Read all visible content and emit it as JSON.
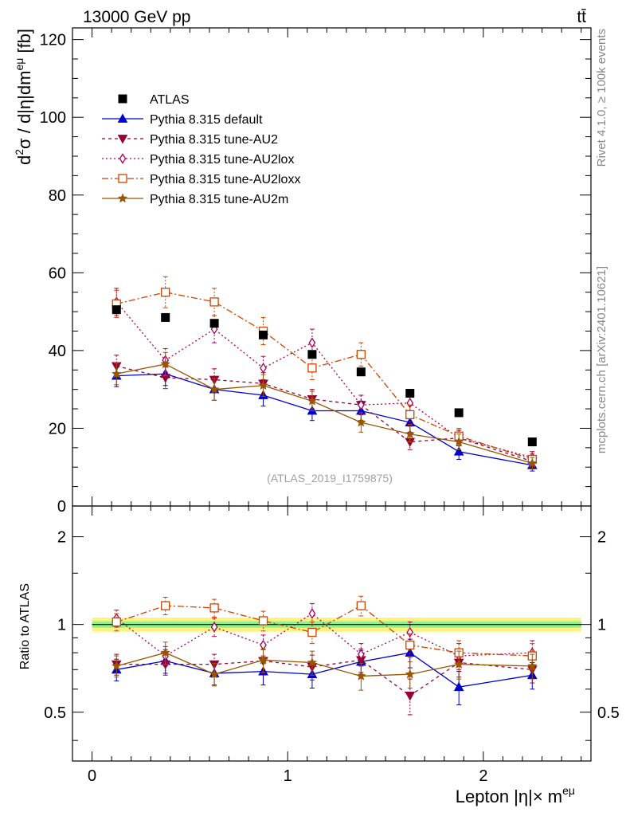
{
  "header": {
    "process": "13000 GeV pp",
    "channel": "tt̄"
  },
  "side_labels": {
    "rivet": "Rivet 4.1.0, ≥ 100k events",
    "mcplots": "mcplots.cern.ch [arXiv:2401.10621]"
  },
  "watermark": "(ATLAS_2019_I1759875)",
  "chart_data": [
    {
      "panel": "main",
      "type": "scatter",
      "ylabel": "d²σ / d|η|dm^eμ [fb]",
      "ylabel_main": "d",
      "ylabel_sup1": "2",
      "ylabel_mid": "σ / d|η|dm",
      "ylabel_sup2": "eμ",
      "ylabel_end": " [fb]",
      "xlim": [
        -0.1,
        2.55
      ],
      "ylim": [
        0,
        123
      ],
      "yticks": [
        0,
        20,
        40,
        60,
        80,
        100,
        120
      ],
      "ytick_labels": [
        "0",
        "20",
        "40",
        "60",
        "80",
        "100",
        "120"
      ],
      "x": [
        0.125,
        0.375,
        0.625,
        0.875,
        1.125,
        1.375,
        1.625,
        1.875,
        2.25
      ],
      "data": {
        "name": "ATLAS",
        "values": [
          50.5,
          48.5,
          47.0,
          44.0,
          39.0,
          34.5,
          29.0,
          24.0,
          16.5
        ],
        "xerr": [
          0.125,
          0.125,
          0.125,
          0.125,
          0.125,
          0.125,
          0.125,
          0.125,
          0.25
        ]
      },
      "series": [
        {
          "name": "Pythia 8.315 default",
          "color": "#0000cc",
          "dash": "",
          "marker": "triangle-up",
          "values": [
            33.5,
            34.0,
            30.0,
            28.5,
            24.5,
            24.5,
            21.5,
            14.0,
            10.5
          ],
          "errors": [
            2.8,
            3.0,
            2.8,
            2.8,
            2.5,
            2.5,
            2.5,
            2.0,
            1.5
          ]
        },
        {
          "name": "Pythia 8.315 tune-AU2",
          "color": "#990033",
          "dash": "4,4",
          "marker": "triangle-down",
          "values": [
            36.0,
            33.0,
            32.5,
            31.5,
            27.5,
            26.0,
            16.5,
            17.5,
            11.5
          ],
          "errors": [
            2.8,
            2.8,
            2.8,
            2.8,
            2.5,
            2.5,
            2.0,
            2.0,
            1.5
          ]
        },
        {
          "name": "Pythia 8.315 tune-AU2lox",
          "color": "#aa0055",
          "dash": "2,3",
          "marker": "diamond-open",
          "values": [
            52.5,
            37.5,
            45.5,
            35.5,
            42.0,
            26.0,
            26.5,
            17.5,
            12.5
          ],
          "errors": [
            3.5,
            3.0,
            3.5,
            3.0,
            3.5,
            2.5,
            2.5,
            2.0,
            1.5
          ]
        },
        {
          "name": "Pythia 8.315 tune-AU2loxx",
          "color": "#cc4400",
          "dash": "8,3,2,3",
          "marker": "square-open",
          "values": [
            52.0,
            55.0,
            52.5,
            45.0,
            35.5,
            39.0,
            23.5,
            18.0,
            12.0
          ],
          "errors": [
            3.5,
            4.0,
            3.5,
            3.5,
            3.0,
            3.0,
            2.5,
            2.0,
            1.5
          ]
        },
        {
          "name": "Pythia 8.315 tune-AU2m",
          "color": "#995500",
          "dash": "",
          "marker": "star",
          "values": [
            34.0,
            36.5,
            30.0,
            31.0,
            27.0,
            21.5,
            18.5,
            16.5,
            11.0
          ],
          "errors": [
            2.8,
            3.0,
            2.8,
            2.8,
            2.5,
            2.5,
            2.0,
            2.0,
            1.5
          ]
        }
      ],
      "legend": {
        "placement": "top-left",
        "entries": [
          "ATLAS",
          "Pythia 8.315 default",
          "Pythia 8.315 tune-AU2",
          "Pythia 8.315 tune-AU2lox",
          "Pythia 8.315 tune-AU2loxx",
          "Pythia 8.315 tune-AU2m"
        ]
      }
    },
    {
      "panel": "ratio",
      "type": "scatter",
      "ylabel": "Ratio to ATLAS",
      "xlabel": "Lepton |η|× m^eμ",
      "xlabel_main": "Lepton |η|× m",
      "xlabel_sup": "eμ",
      "ylim": [
        0.34,
        2.55
      ],
      "yscale": "log",
      "yticks": [
        0.5,
        1,
        2
      ],
      "ytick_labels": [
        "0.5",
        "1",
        "2"
      ],
      "xticks": [
        0,
        1,
        2
      ],
      "xtick_labels": [
        "0",
        "1",
        "2"
      ],
      "band_inner": 0.025,
      "band_outer": 0.055,
      "series_values": [
        [
          0.7,
          0.75,
          0.68,
          0.69,
          0.675,
          0.745,
          0.8,
          0.61,
          0.67
        ],
        [
          0.73,
          0.73,
          0.73,
          0.75,
          0.715,
          0.755,
          0.57,
          0.74,
          0.7
        ],
        [
          1.05,
          0.78,
          0.98,
          0.85,
          1.09,
          0.79,
          0.94,
          0.78,
          0.8
        ],
        [
          1.02,
          1.16,
          1.14,
          1.03,
          0.94,
          1.16,
          0.85,
          0.8,
          0.78
        ],
        [
          0.72,
          0.8,
          0.675,
          0.755,
          0.74,
          0.665,
          0.675,
          0.73,
          0.72
        ]
      ],
      "series_errors": [
        [
          0.06,
          0.07,
          0.06,
          0.07,
          0.07,
          0.07,
          0.09,
          0.08,
          0.07
        ],
        [
          0.06,
          0.06,
          0.06,
          0.07,
          0.07,
          0.07,
          0.08,
          0.08,
          0.07
        ],
        [
          0.07,
          0.06,
          0.07,
          0.07,
          0.09,
          0.07,
          0.08,
          0.08,
          0.08
        ],
        [
          0.07,
          0.08,
          0.08,
          0.08,
          0.08,
          0.09,
          0.08,
          0.08,
          0.08
        ],
        [
          0.06,
          0.07,
          0.06,
          0.07,
          0.07,
          0.07,
          0.07,
          0.08,
          0.07
        ]
      ]
    }
  ]
}
